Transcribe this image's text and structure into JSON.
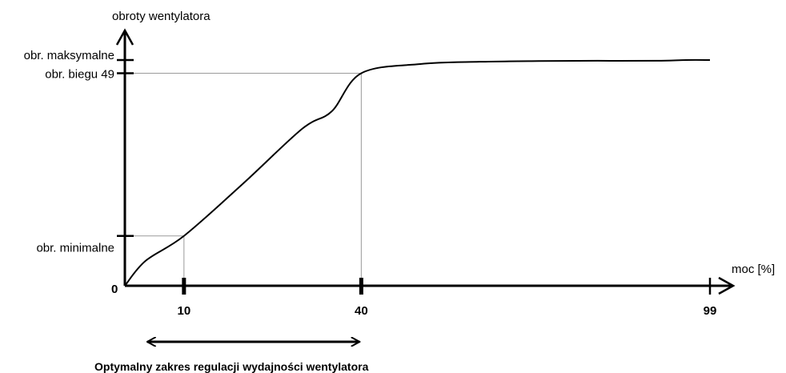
{
  "chart_data": {
    "type": "line",
    "ylabel": "obroty wentylatora",
    "xlabel": "moc [%]",
    "origin_label": "0",
    "x_ticks": [
      10,
      40,
      99
    ],
    "y_ticks": [
      {
        "label": "obr. minimalne",
        "value": 0.2
      },
      {
        "label": "obr. biegu 49",
        "value": 0.853
      },
      {
        "label": "obr. maksymalne",
        "value": 0.906
      }
    ],
    "xlim": [
      0,
      100
    ],
    "ylim": [
      0,
      1
    ],
    "series": [
      {
        "x": [
          0,
          3.5,
          10,
          20,
          30,
          35,
          40,
          50,
          60,
          70,
          80,
          90,
          95,
          99
        ],
        "y": [
          0,
          0.1,
          0.2,
          0.41,
          0.63,
          0.7,
          0.853,
          0.89,
          0.899,
          0.902,
          0.903,
          0.903,
          0.906,
          0.906
        ]
      }
    ],
    "guides": [
      {
        "x": 10,
        "y": 0.2
      },
      {
        "x": 40,
        "y": 0.853
      }
    ],
    "range_annotation": {
      "from": 3.5,
      "to": 40,
      "label": "Optymalny zakres regulacji wydajności  wentylatora"
    },
    "grid": false
  }
}
